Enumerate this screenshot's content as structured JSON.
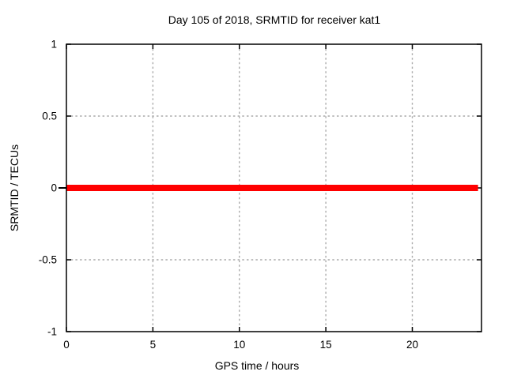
{
  "chart_data": {
    "type": "line",
    "title": "Day 105 of 2018, SRMTID for receiver kat1",
    "xlabel": "GPS time / hours",
    "ylabel": "SRMTID / TECUs",
    "xlim": [
      0,
      24
    ],
    "ylim": [
      -1,
      1
    ],
    "xticks": [
      0,
      5,
      10,
      15,
      20
    ],
    "xtick_labels": [
      "0",
      "5",
      "10",
      "15",
      "20"
    ],
    "yticks": [
      -1,
      -0.5,
      0,
      0.5,
      1
    ],
    "ytick_labels": [
      "-1",
      "-0.5",
      "0",
      "0.5",
      "1"
    ],
    "grid": true,
    "grid_color": "#aaaaaa",
    "border_color": "#000000",
    "background_color": "#ffffff",
    "legend": "none",
    "series": [
      {
        "name": "SRMTID",
        "color": "#ff0000",
        "line_width": 8,
        "points": [
          [
            0,
            0
          ],
          [
            23.8,
            0
          ]
        ]
      }
    ]
  }
}
